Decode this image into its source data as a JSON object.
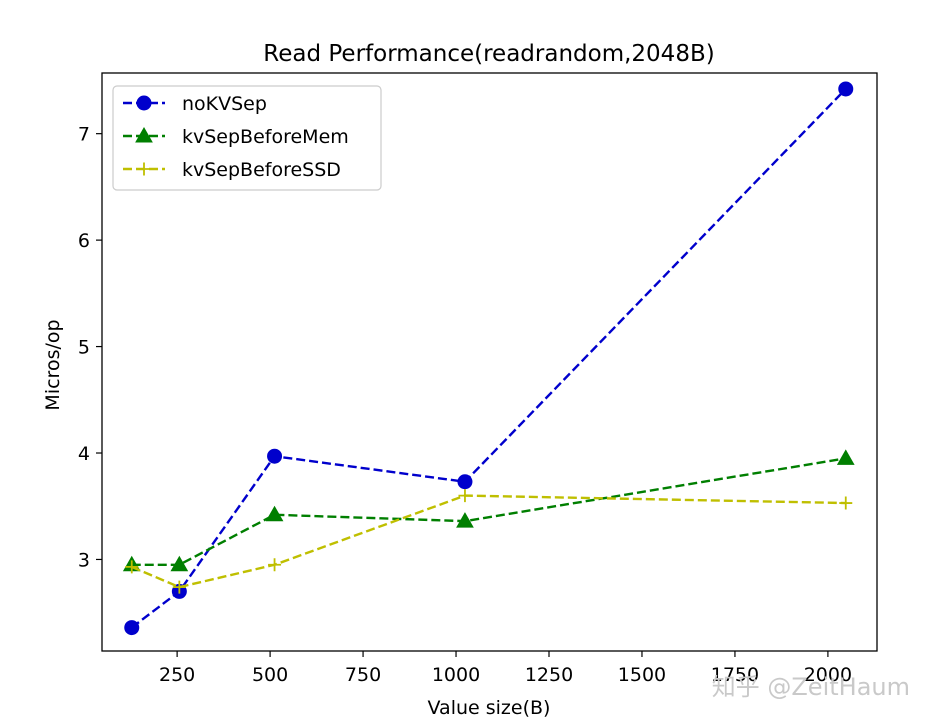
{
  "watermark": "知乎 @ZeitHaum",
  "chart_data": {
    "type": "line",
    "title": "Read Performance(readrandom,2048B)",
    "xlabel": "Value size(B)",
    "ylabel": "Micros/op",
    "xlim": [
      48,
      2132
    ],
    "ylim": [
      2.14,
      7.57
    ],
    "xticks": [
      250,
      500,
      750,
      1000,
      1250,
      1500,
      1750,
      2000
    ],
    "yticks": [
      3,
      4,
      5,
      6,
      7
    ],
    "legend_position": "upper-left",
    "grid": false,
    "series": [
      {
        "name": "noKVSep",
        "color": "#0000cc",
        "marker": "circle",
        "linestyle": "dashed",
        "x": [
          128,
          256,
          512,
          1024,
          2048
        ],
        "y": [
          2.36,
          2.7,
          3.97,
          3.73,
          7.42
        ]
      },
      {
        "name": "kvSepBeforeMem",
        "color": "#007f00",
        "marker": "triangle",
        "linestyle": "dashed",
        "x": [
          128,
          256,
          512,
          1024,
          2048
        ],
        "y": [
          2.95,
          2.95,
          3.42,
          3.36,
          3.95
        ]
      },
      {
        "name": "kvSepBeforeSSD",
        "color": "#bfbf00",
        "marker": "plus",
        "linestyle": "dashed",
        "x": [
          128,
          256,
          512,
          1024,
          2048
        ],
        "y": [
          2.93,
          2.74,
          2.95,
          3.6,
          3.53
        ]
      }
    ]
  }
}
